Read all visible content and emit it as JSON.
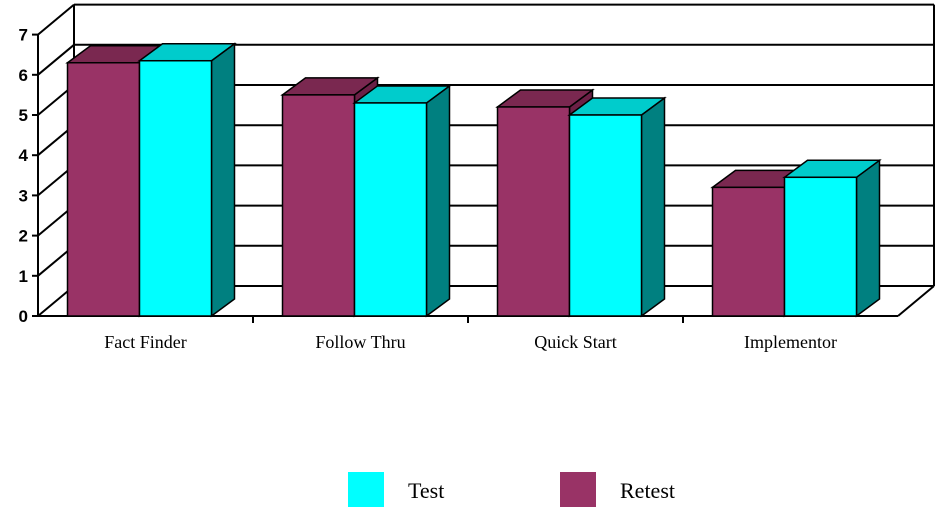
{
  "chart_data": {
    "type": "bar",
    "three_d": true,
    "title": "",
    "xlabel": "",
    "ylabel": "",
    "categories": [
      "Fact Finder",
      "Follow Thru",
      "Quick Start",
      "Implementor"
    ],
    "series": [
      {
        "name": "Retest",
        "values": [
          6.3,
          5.5,
          5.2,
          3.2
        ],
        "color": "#993366",
        "top_color": "#7a2850",
        "side_color": "#6b2046"
      },
      {
        "name": "Test",
        "values": [
          6.35,
          5.3,
          5.0,
          3.45
        ],
        "color": "#00ffff",
        "top_color": "#00cccc",
        "side_color": "#008080"
      }
    ],
    "ylim": [
      0,
      7
    ],
    "yticks": [
      0,
      1,
      2,
      3,
      4,
      5,
      6,
      7
    ],
    "grid": true,
    "legend": {
      "position": "bottom",
      "order": [
        "Test",
        "Retest"
      ]
    }
  }
}
